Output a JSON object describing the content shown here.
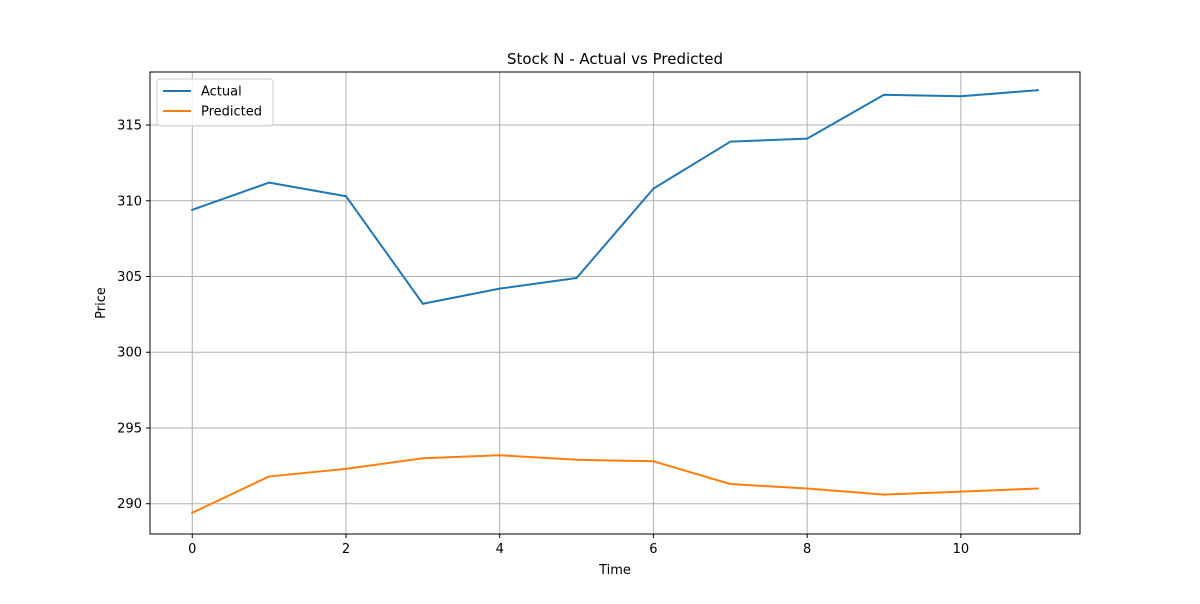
{
  "chart_data": {
    "type": "line",
    "title": "Stock N - Actual vs Predicted",
    "xlabel": "Time",
    "ylabel": "Price",
    "x": [
      0,
      1,
      2,
      3,
      4,
      5,
      6,
      7,
      8,
      9,
      10,
      11
    ],
    "xlim": [
      -0.55,
      11.55
    ],
    "ylim": [
      288.0,
      318.5
    ],
    "xticks": [
      0,
      2,
      4,
      6,
      8,
      10
    ],
    "yticks": [
      290,
      295,
      300,
      305,
      310,
      315
    ],
    "grid": true,
    "legend_position": "upper-left",
    "series": [
      {
        "name": "Actual",
        "color": "#1f77b4",
        "values": [
          309.4,
          311.2,
          310.3,
          303.2,
          304.2,
          304.9,
          310.8,
          313.9,
          314.1,
          317.0,
          316.9,
          317.3
        ]
      },
      {
        "name": "Predicted",
        "color": "#ff7f0e",
        "values": [
          289.4,
          291.8,
          292.3,
          293.0,
          293.2,
          292.9,
          292.8,
          291.3,
          291.0,
          290.6,
          290.8,
          291.0
        ]
      }
    ]
  }
}
